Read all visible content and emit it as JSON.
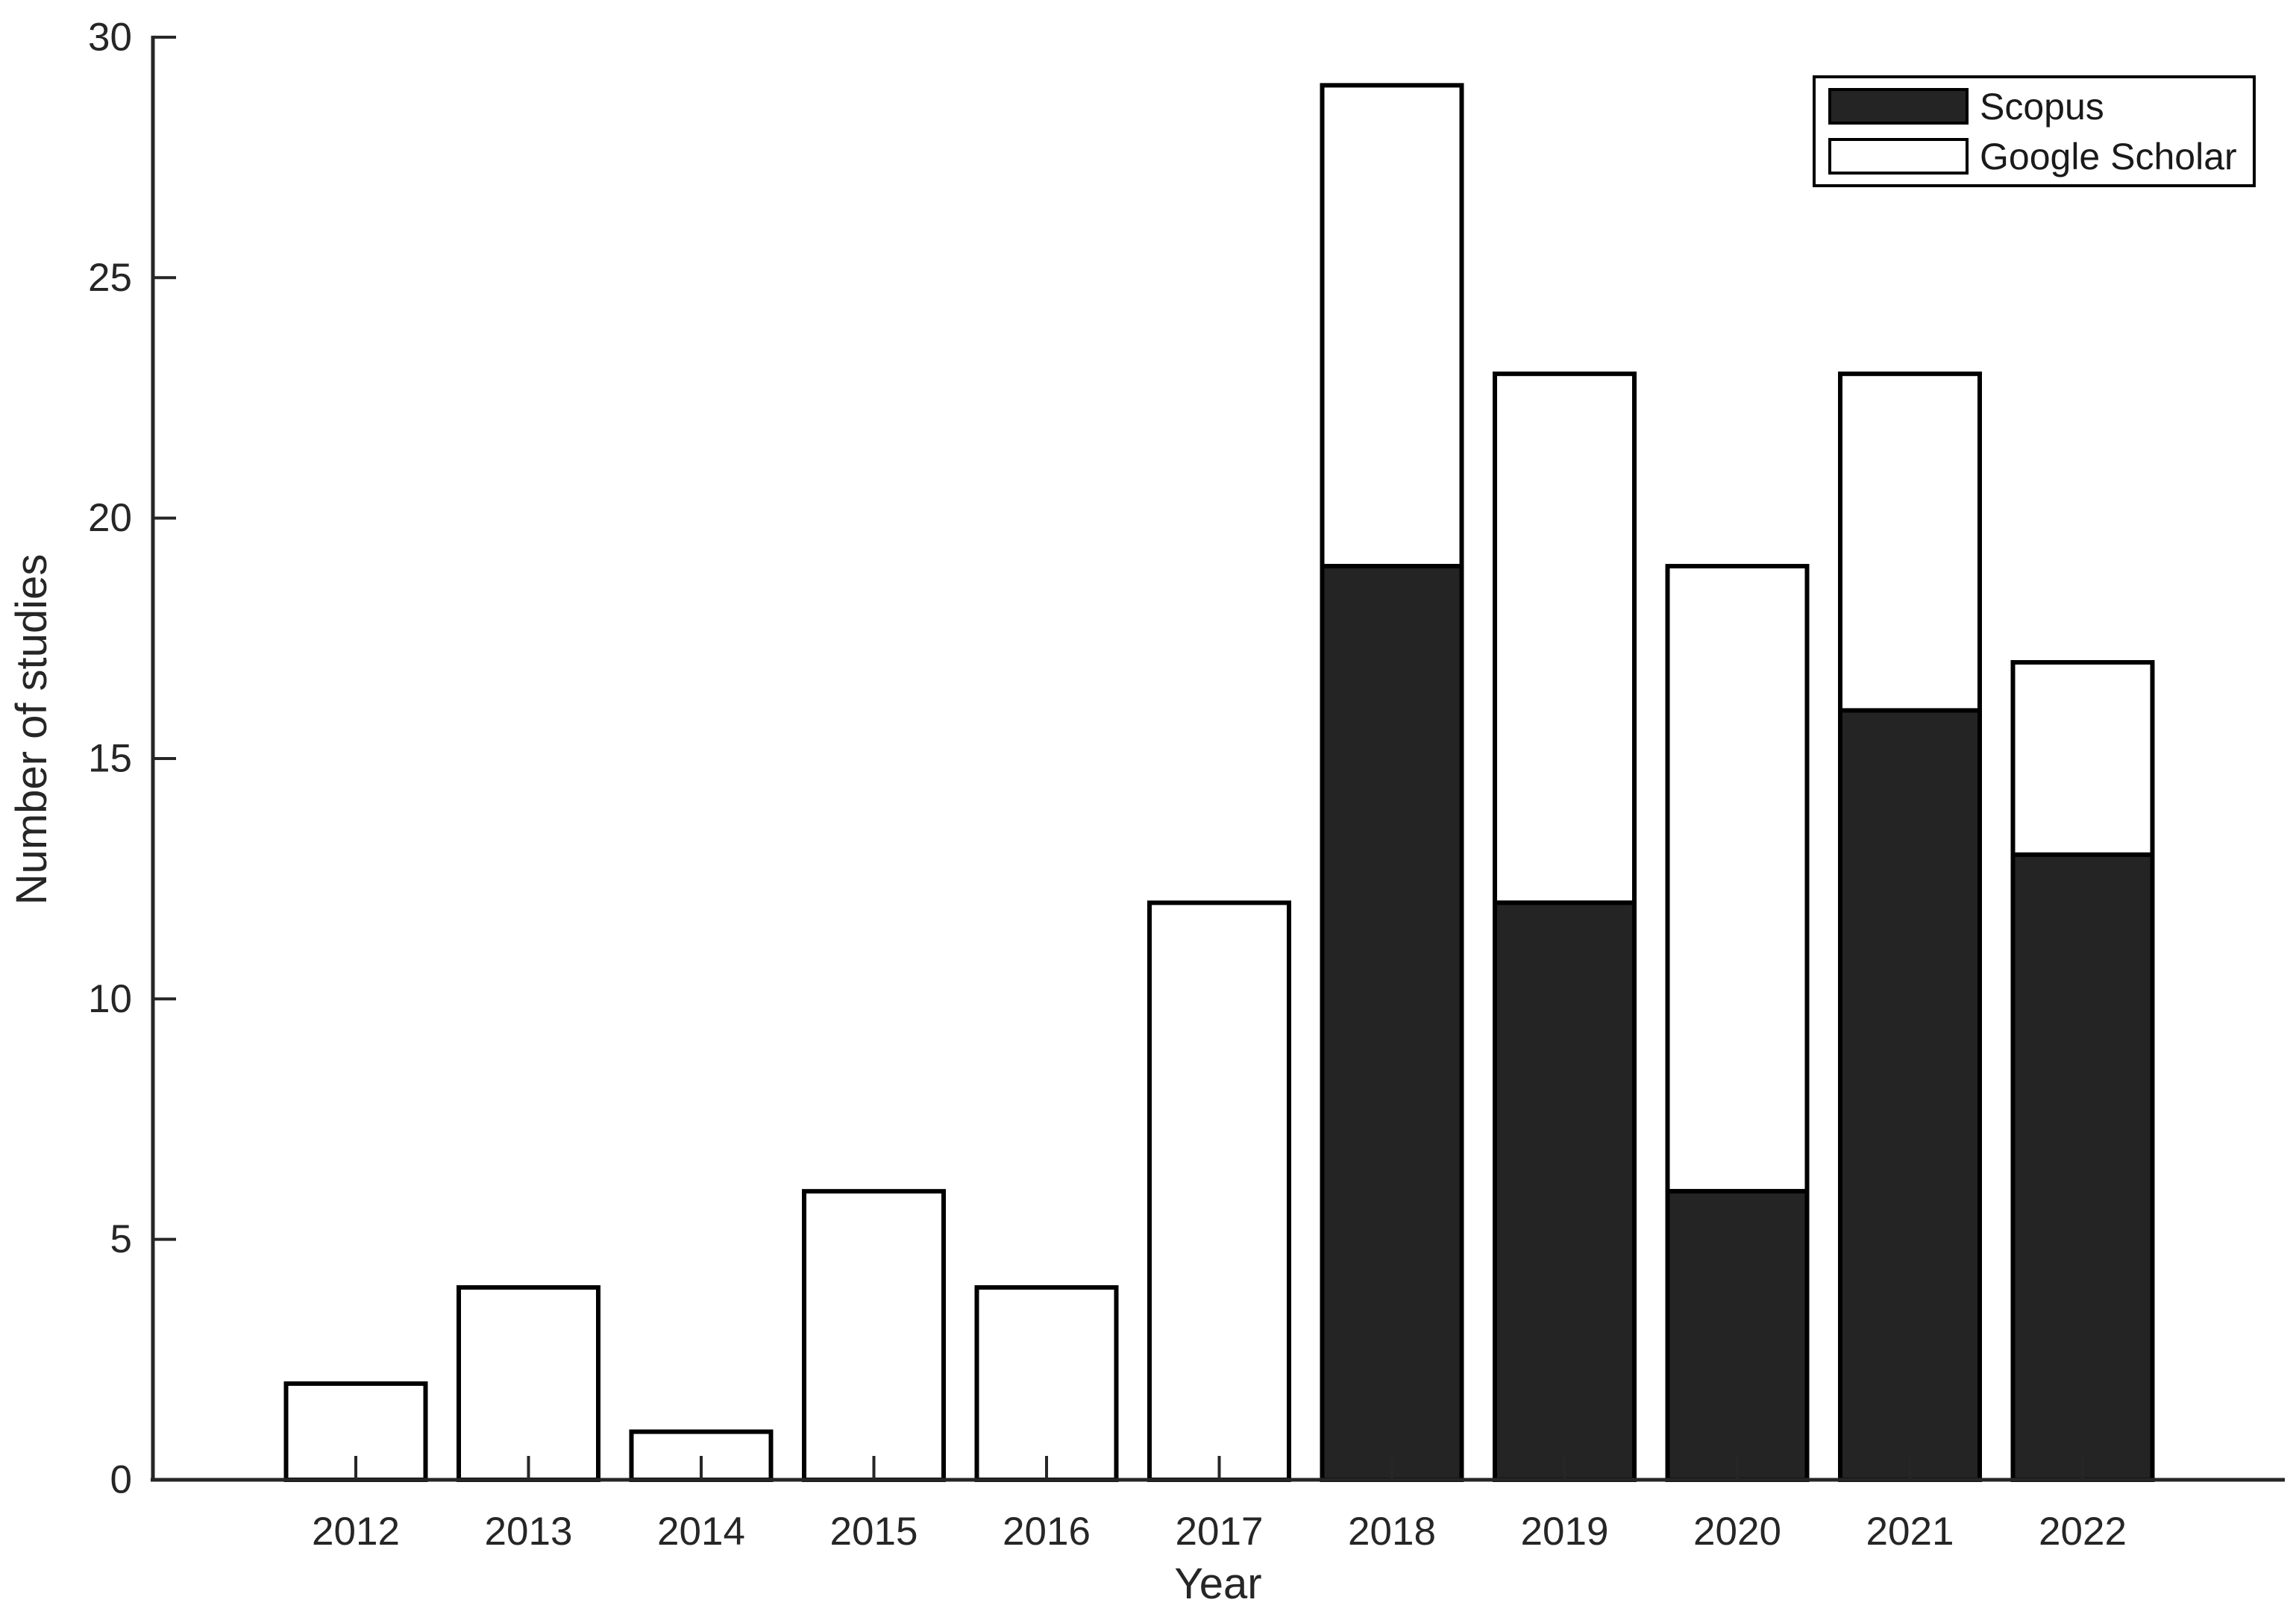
{
  "figure": {
    "background": "#ffffff"
  },
  "chart_data": {
    "type": "bar",
    "stacked": true,
    "title": "",
    "xlabel": "Year",
    "ylabel": "Number of studies",
    "categories": [
      "2012",
      "2013",
      "2014",
      "2015",
      "2016",
      "2017",
      "2018",
      "2019",
      "2020",
      "2021",
      "2022"
    ],
    "series": [
      {
        "name": "Scopus",
        "color": "#242424",
        "values": [
          0,
          0,
          0,
          0,
          0,
          0,
          19,
          12,
          6,
          16,
          13
        ]
      },
      {
        "name": "Google Scholar",
        "color": "#ffffff",
        "values": [
          2,
          4,
          1,
          6,
          4,
          12,
          10,
          11,
          13,
          7,
          4
        ]
      }
    ],
    "totals": [
      2,
      4,
      1,
      6,
      4,
      12,
      29,
      23,
      19,
      23,
      17
    ],
    "ylim": [
      0,
      30
    ],
    "yticks": [
      0,
      5,
      10,
      15,
      20,
      25,
      30
    ],
    "grid": false,
    "legend_position": "top-right"
  },
  "colors": {
    "axis": "#262626",
    "tick_text": "#262626",
    "bar_border": "#000000",
    "scopus_fill": "#242424",
    "google_scholar_fill": "#ffffff",
    "background": "#ffffff"
  }
}
